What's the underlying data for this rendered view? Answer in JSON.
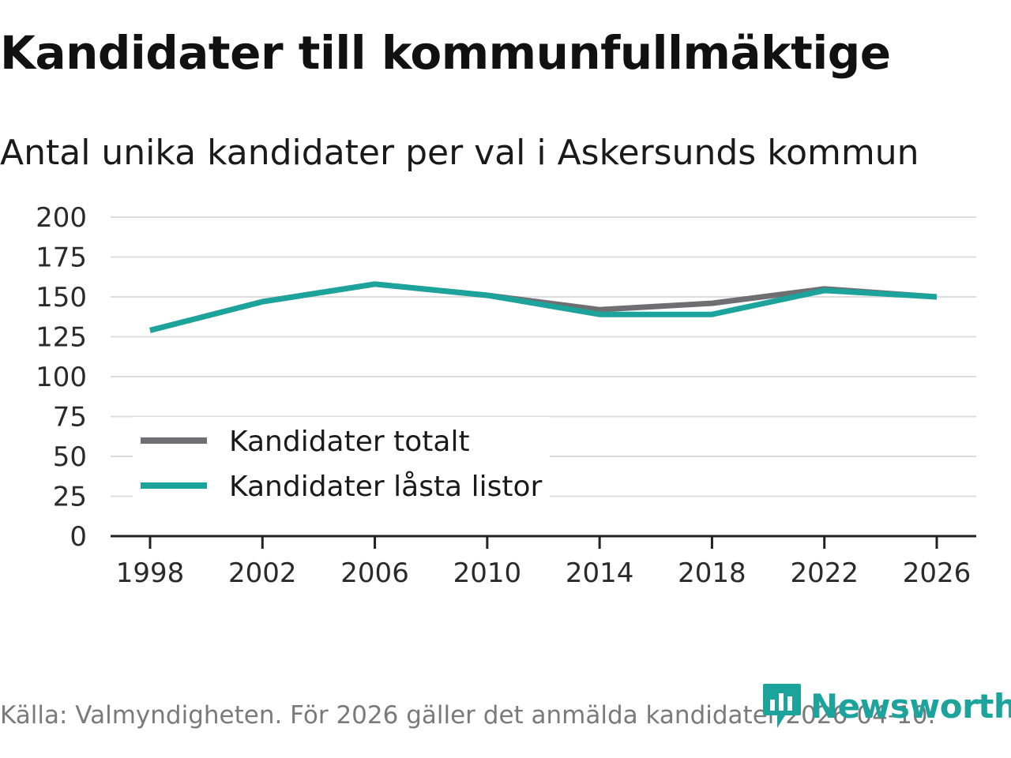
{
  "title": "Kandidater till kommunfullmäktige",
  "subtitle": "Antal unika kandidater per val i Askersunds kommun",
  "footer": "Källa: Valmyndigheten. För 2026 gäller det anmälda kandidater 2026-04-10.",
  "brand": {
    "name": "Newsworthy",
    "icon": "newsworthy-logo-icon",
    "color": "#1ba39c"
  },
  "chart_data": {
    "type": "line",
    "title": "Kandidater till kommunfullmäktige",
    "subtitle": "Antal unika kandidater per val i Askersunds kommun",
    "x": [
      "1998",
      "2002",
      "2006",
      "2010",
      "2014",
      "2018",
      "2022",
      "2026"
    ],
    "ylim": [
      0,
      200
    ],
    "yticks": [
      0,
      25,
      50,
      75,
      100,
      125,
      150,
      175,
      200
    ],
    "grid": true,
    "legend_position": "bottom-left",
    "series": [
      {
        "name": "Kandidater totalt",
        "color": "#6e6e73",
        "values": [
          129,
          147,
          158,
          151,
          142,
          146,
          155,
          150
        ]
      },
      {
        "name": "Kandidater låsta listor",
        "color": "#1ba39c",
        "values": [
          129,
          147,
          158,
          151,
          139,
          139,
          154,
          150
        ]
      }
    ]
  }
}
